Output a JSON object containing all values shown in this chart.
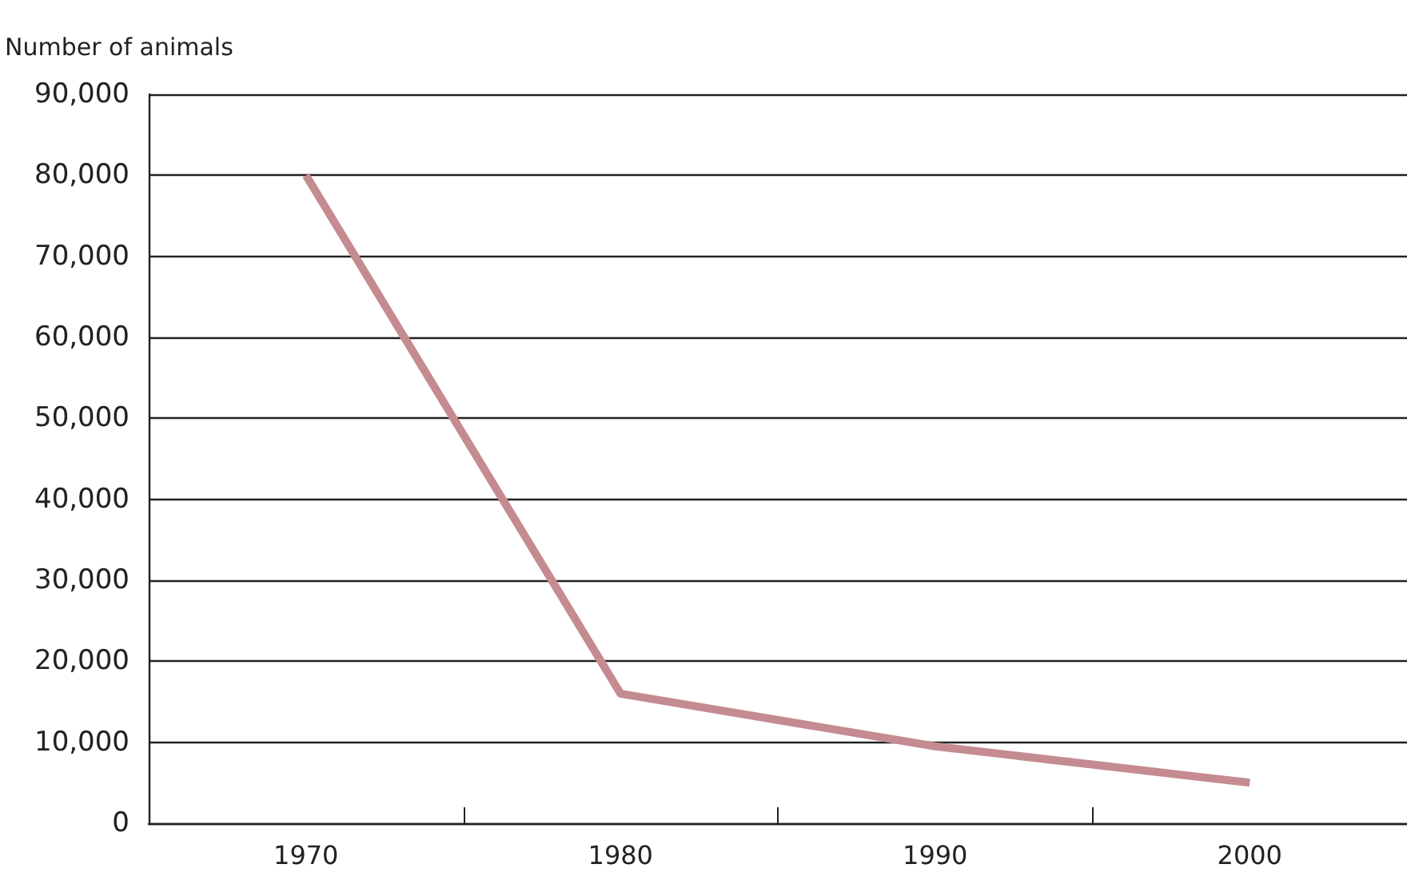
{
  "chart_data": {
    "type": "line",
    "ylabel": "Number of animals",
    "categories": [
      "1970",
      "1980",
      "1990",
      "2000"
    ],
    "series": [
      {
        "color": "#c48b91",
        "values": [
          80000,
          16000,
          9500,
          5000
        ]
      }
    ],
    "ylim": [
      0,
      90000
    ],
    "yticks": [
      {
        "value": 0,
        "label": "0"
      },
      {
        "value": 10000,
        "label": "10,000"
      },
      {
        "value": 20000,
        "label": "20,000"
      },
      {
        "value": 30000,
        "label": "30,000"
      },
      {
        "value": 40000,
        "label": "40,000"
      },
      {
        "value": 50000,
        "label": "50,000"
      },
      {
        "value": 60000,
        "label": "60,000"
      },
      {
        "value": 70000,
        "label": "70,000"
      },
      {
        "value": 80000,
        "label": "80,000"
      },
      {
        "value": 90000,
        "label": "90,000"
      }
    ],
    "grid": "y",
    "marker": "none",
    "line_style": "solid"
  }
}
